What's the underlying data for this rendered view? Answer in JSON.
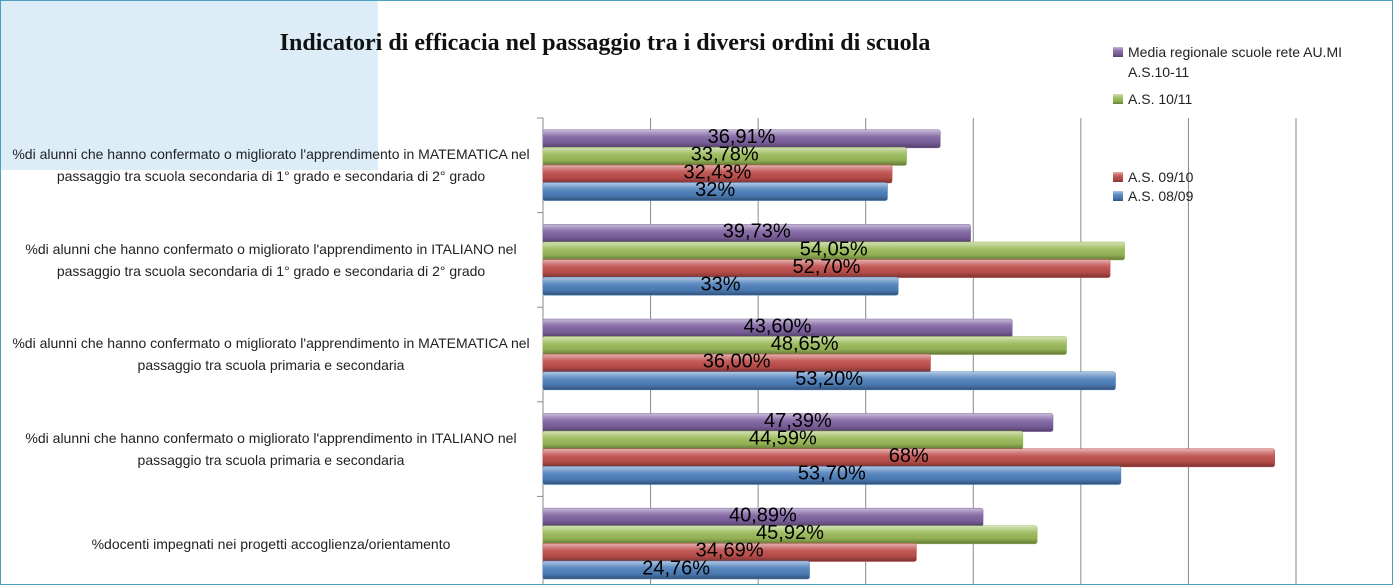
{
  "chart_data": {
    "type": "barh",
    "title": "Indicatori di efficacia nel passaggio tra i diversi ordini di scuola",
    "categories": [
      "%di alunni che hanno confermato o migliorato l'apprendimento in MATEMATICA nel passaggio tra scuola secondaria di 1° grado e secondaria di 2° grado",
      "%di alunni che hanno confermato o migliorato l'apprendimento in ITALIANO nel passaggio tra scuola secondaria di 1° grado e secondaria di 2° grado",
      "%di alunni che hanno confermato o migliorato l'apprendimento in MATEMATICA nel passaggio tra scuola primaria e secondaria",
      "%di alunni che hanno confermato o migliorato l'apprendimento in ITALIANO nel passaggio tra scuola primaria e secondaria",
      "%docenti impegnati nei progetti accoglienza/orientamento"
    ],
    "series": [
      {
        "name": "Media regionale scuole rete AU.MI A.S.10-11",
        "color": "#8064a2",
        "values": [
          36.91,
          39.73,
          43.6,
          47.39,
          40.89
        ],
        "value_labels": [
          "36,91%",
          "39,73%",
          "43,60%",
          "47,39%",
          "40,89%"
        ]
      },
      {
        "name": "A.S. 10/11",
        "color": "#9bbb59",
        "values": [
          33.78,
          54.05,
          48.65,
          44.59,
          45.92
        ],
        "value_labels": [
          "33,78%",
          "54,05%",
          "48,65%",
          "44,59%",
          "45,92%"
        ]
      },
      {
        "name": "A.S. 09/10",
        "color": "#c0504d",
        "values": [
          32.43,
          52.7,
          36.0,
          68,
          34.69
        ],
        "value_labels": [
          "32,43%",
          "52,70%",
          "36,00%",
          "68%",
          "34,69%"
        ]
      },
      {
        "name": "A.S. 08/09",
        "color": "#4f81bd",
        "values": [
          32,
          33,
          53.2,
          53.7,
          24.76
        ],
        "value_labels": [
          "32%",
          "33%",
          "53,20%",
          "53,70%",
          "24,76%"
        ]
      }
    ],
    "xlim": [
      0,
      70
    ],
    "xticks": [
      0,
      10,
      20,
      30,
      40,
      50,
      60,
      70
    ],
    "grid": true
  }
}
